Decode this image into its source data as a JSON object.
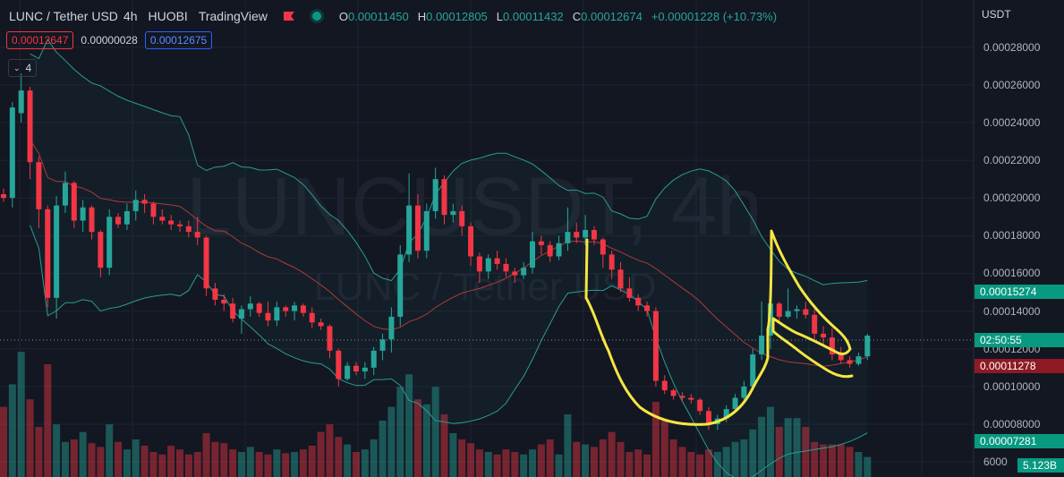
{
  "header": {
    "symbol": "LUNC / Tether USD",
    "interval": "4h",
    "exchange": "HUOBI",
    "provider": "TradingView",
    "o_key": "O",
    "o_val": "0.00011450",
    "h_key": "H",
    "h_val": "0.00012805",
    "l_key": "L",
    "l_val": "0.00011432",
    "c_key": "C",
    "c_val": "0.00012674",
    "change": "+0.00001228 (+10.73%)"
  },
  "quote": {
    "sell": "0.00012647",
    "spread": "0.00000028",
    "buy": "0.00012675"
  },
  "indicator_toggle": {
    "label": "4"
  },
  "watermark": {
    "line1": "LUNCUSDT, 4h",
    "line2": "LUNC / Tether USD"
  },
  "axis": {
    "currency": "USDT",
    "tick_labels": [
      "0.00028000",
      "0.00026000",
      "0.00024000",
      "0.00022000",
      "0.00020000",
      "0.00018000",
      "0.00016000",
      "0.00014000",
      "0.00012000",
      "0.00010000",
      "0.00008000",
      "6000"
    ]
  },
  "price_labels": {
    "bb_upper": "0.00015274",
    "countdown": "02:50:55",
    "ma": "0.00011278",
    "bb_lower": "0.00007281",
    "volume": "5.123B"
  },
  "colors": {
    "up": "#26a69a",
    "down": "#f23645",
    "bb": "#2a9d8f",
    "ma": "#b03a3a",
    "highlight": "#f5e642"
  },
  "chart_data": {
    "type": "candlestick",
    "ylim": [
      5.2e-05,
      0.000305
    ],
    "candles": [
      [
        0.000202,
        0.000205,
        0.000198,
        0.0002
      ],
      [
        0.0002,
        0.000251,
        0.000195,
        0.000248
      ],
      [
        0.000245,
        0.000266,
        0.00024,
        0.000257
      ],
      [
        0.000257,
        0.000259,
        0.00021,
        0.000219
      ],
      [
        0.000219,
        0.000222,
        0.000184,
        0.000194
      ],
      [
        0.000194,
        0.000196,
        0.000142,
        0.000147
      ],
      [
        0.000147,
        0.000201,
        0.000136,
        0.000196
      ],
      [
        0.000196,
        0.000214,
        0.000192,
        0.000208
      ],
      [
        0.000208,
        0.000209,
        0.000184,
        0.000188
      ],
      [
        0.000188,
        0.000199,
        0.000182,
        0.000195
      ],
      [
        0.000195,
        0.000196,
        0.000178,
        0.000182
      ],
      [
        0.000182,
        0.000183,
        0.000158,
        0.000163
      ],
      [
        0.000163,
        0.000194,
        0.000159,
        0.00019
      ],
      [
        0.00019,
        0.000192,
        0.000184,
        0.000186
      ],
      [
        0.000186,
        0.000197,
        0.000183,
        0.000193
      ],
      [
        0.000193,
        0.000204,
        0.000188,
        0.000199
      ],
      [
        0.000199,
        0.000202,
        0.000192,
        0.000197
      ],
      [
        0.000197,
        0.000198,
        0.000186,
        0.00019
      ],
      [
        0.00019,
        0.000194,
        0.000186,
        0.000188
      ],
      [
        0.000188,
        0.000191,
        0.000183,
        0.000186
      ],
      [
        0.000186,
        0.000188,
        0.000182,
        0.000185
      ],
      [
        0.000185,
        0.000188,
        0.000179,
        0.000182
      ],
      [
        0.000182,
        0.00019,
        0.000175,
        0.000179
      ],
      [
        0.000179,
        0.00018,
        0.000148,
        0.000152
      ],
      [
        0.000152,
        0.000155,
        0.000143,
        0.000146
      ],
      [
        0.000146,
        0.000149,
        0.00014,
        0.000144
      ],
      [
        0.000144,
        0.000147,
        0.000134,
        0.000136
      ],
      [
        0.000136,
        0.000143,
        0.000128,
        0.000141
      ],
      [
        0.000141,
        0.000148,
        0.000137,
        0.000144
      ],
      [
        0.000144,
        0.000145,
        0.000137,
        0.000139
      ],
      [
        0.000139,
        0.000145,
        0.000132,
        0.000135
      ],
      [
        0.000135,
        0.000145,
        0.000132,
        0.000142
      ],
      [
        0.000142,
        0.000143,
        0.000137,
        0.00014
      ],
      [
        0.00014,
        0.000145,
        0.000135,
        0.000143
      ],
      [
        0.000143,
        0.000144,
        0.000137,
        0.000139
      ],
      [
        0.000139,
        0.000142,
        0.000131,
        0.000134
      ],
      [
        0.000134,
        0.000136,
        0.00013,
        0.000132
      ],
      [
        0.000132,
        0.000133,
        0.000115,
        0.000119
      ],
      [
        0.000119,
        0.00012,
        0.0001,
        0.000104
      ],
      [
        0.000104,
        0.000113,
        0.000103,
        0.000111
      ],
      [
        0.000111,
        0.000113,
        0.000106,
        0.000108
      ],
      [
        0.000108,
        0.000113,
        0.000104,
        0.00011
      ],
      [
        0.00011,
        0.000121,
        0.000106,
        0.000119
      ],
      [
        0.000119,
        0.000128,
        0.000114,
        0.000125
      ],
      [
        0.000125,
        0.000142,
        0.000118,
        0.000137
      ],
      [
        0.000137,
        0.000175,
        0.000132,
        0.00017
      ],
      [
        0.00017,
        0.000213,
        0.000166,
        0.000196
      ],
      [
        0.000196,
        0.000202,
        0.000168,
        0.000172
      ],
      [
        0.000172,
        0.000197,
        0.000168,
        0.000193
      ],
      [
        0.000193,
        0.000216,
        0.000189,
        0.00021
      ],
      [
        0.00021,
        0.000212,
        0.000186,
        0.000191
      ],
      [
        0.000191,
        0.000197,
        0.000187,
        0.000193
      ],
      [
        0.000193,
        0.000196,
        0.00018,
        0.000185
      ],
      [
        0.000185,
        0.000187,
        0.000164,
        0.000169
      ],
      [
        0.000169,
        0.000171,
        0.000155,
        0.000161
      ],
      [
        0.000161,
        0.00017,
        0.000157,
        0.000168
      ],
      [
        0.000168,
        0.000172,
        0.000162,
        0.000165
      ],
      [
        0.000165,
        0.000168,
        0.000158,
        0.000161
      ],
      [
        0.000161,
        0.000163,
        0.000155,
        0.000159
      ],
      [
        0.000159,
        0.000166,
        0.000157,
        0.000163
      ],
      [
        0.000163,
        0.000182,
        0.00016,
        0.000177
      ],
      [
        0.000177,
        0.00018,
        0.00017,
        0.000175
      ],
      [
        0.000175,
        0.000177,
        0.000166,
        0.000169
      ],
      [
        0.000169,
        0.00018,
        0.000167,
        0.000176
      ],
      [
        0.000176,
        0.000195,
        0.000172,
        0.000182
      ],
      [
        0.000182,
        0.000187,
        0.000176,
        0.000179
      ],
      [
        0.000179,
        0.000191,
        0.000175,
        0.000183
      ],
      [
        0.000183,
        0.000185,
        0.000175,
        0.000178
      ],
      [
        0.000178,
        0.000179,
        0.000163,
        0.00017
      ],
      [
        0.00017,
        0.000172,
        0.000157,
        0.000162
      ],
      [
        0.000162,
        0.000166,
        0.00015,
        0.000152
      ],
      [
        0.000152,
        0.000158,
        0.000145,
        0.000147
      ],
      [
        0.000147,
        0.000149,
        0.00014,
        0.000143
      ],
      [
        0.000143,
        0.000145,
        0.000137,
        0.00014
      ],
      [
        0.00014,
        0.000142,
        0.0001,
        0.000103
      ],
      [
        0.000103,
        0.000106,
        9.6e-05,
        9.8e-05
      ],
      [
        9.8e-05,
        9.9e-05,
        9.3e-05,
        9.5e-05
      ],
      [
        9.5e-05,
        9.7e-05,
        9.2e-05,
        9.4e-05
      ],
      [
        9.4e-05,
        9.6e-05,
        9.1e-05,
        9.3e-05
      ],
      [
        9.3e-05,
        9.4e-05,
        8.5e-05,
        8.7e-05
      ],
      [
        8.7e-05,
        8.9e-05,
        7.7e-05,
        8e-05
      ],
      [
        8e-05,
        8.5e-05,
        7.7e-05,
        8.3e-05
      ],
      [
        8.3e-05,
        9e-05,
        8.1e-05,
        8.8e-05
      ],
      [
        8.8e-05,
        9.6e-05,
        8.6e-05,
        9.4e-05
      ],
      [
        9.4e-05,
        0.000103,
        9.2e-05,
        0.0001
      ],
      [
        0.0001,
        0.00012,
        9.8e-05,
        0.000117
      ],
      [
        0.000117,
        0.000145,
        0.000114,
        0.000127
      ],
      [
        0.000127,
        0.000145,
        0.00012,
        0.000144
      ],
      [
        0.000144,
        0.000145,
        0.000134,
        0.000137
      ],
      [
        0.000137,
        0.000152,
        0.000136,
        0.00014
      ],
      [
        0.00014,
        0.000143,
        0.000136,
        0.000141
      ],
      [
        0.000141,
        0.000145,
        0.000136,
        0.000138
      ],
      [
        0.000138,
        0.000141,
        0.000125,
        0.000128
      ],
      [
        0.000128,
        0.000132,
        0.000121,
        0.000126
      ],
      [
        0.000126,
        0.000131,
        0.000114,
        0.000117
      ],
      [
        0.000117,
        0.000121,
        0.000112,
        0.000114
      ],
      [
        0.000114,
        0.000116,
        0.00011,
        0.000112
      ],
      [
        0.000112,
        0.000118,
        0.000111,
        0.000116
      ],
      [
        0.000116,
        0.000128,
        0.000114,
        0.000127
      ]
    ],
    "volume": [
      0.56,
      0.74,
      1.0,
      0.62,
      0.4,
      0.9,
      0.42,
      0.28,
      0.3,
      0.36,
      0.27,
      0.24,
      0.42,
      0.28,
      0.22,
      0.3,
      0.25,
      0.2,
      0.18,
      0.25,
      0.22,
      0.18,
      0.2,
      0.35,
      0.28,
      0.27,
      0.22,
      0.2,
      0.24,
      0.2,
      0.18,
      0.22,
      0.19,
      0.2,
      0.22,
      0.25,
      0.36,
      0.42,
      0.32,
      0.26,
      0.2,
      0.22,
      0.3,
      0.45,
      0.56,
      0.72,
      0.82,
      0.62,
      0.58,
      0.72,
      0.5,
      0.35,
      0.3,
      0.27,
      0.22,
      0.2,
      0.18,
      0.22,
      0.2,
      0.18,
      0.22,
      0.26,
      0.3,
      0.18,
      0.5,
      0.28,
      0.26,
      0.24,
      0.3,
      0.36,
      0.28,
      0.2,
      0.22,
      0.18,
      0.6,
      0.45,
      0.3,
      0.24,
      0.2,
      0.18,
      0.22,
      0.2,
      0.24,
      0.28,
      0.3,
      0.38,
      0.48,
      0.56,
      0.4,
      0.47,
      0.47,
      0.4,
      0.28,
      0.26,
      0.26,
      0.26,
      0.24,
      0.2,
      0.16
    ],
    "volume_max_height": 140
  }
}
